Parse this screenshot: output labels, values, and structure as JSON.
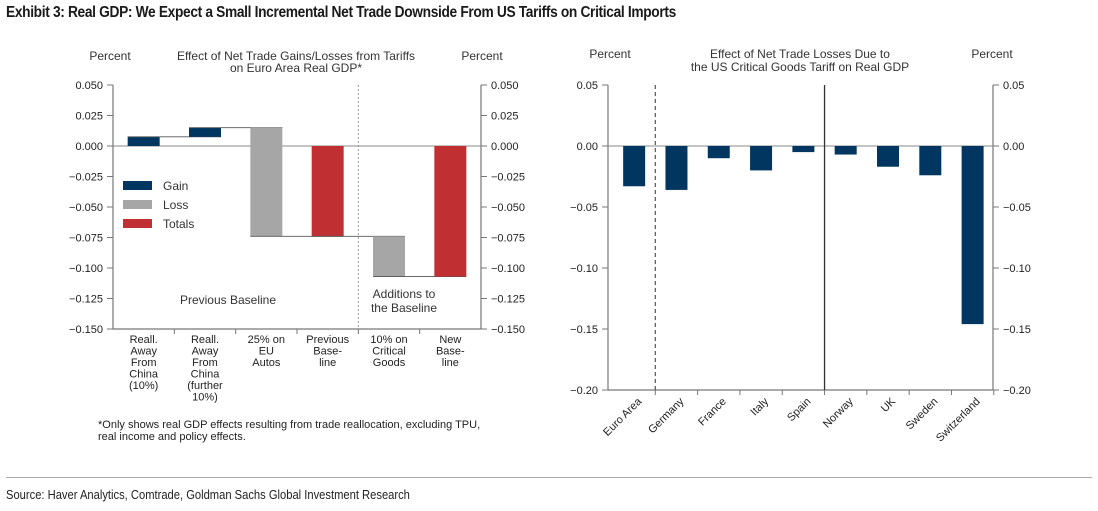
{
  "title": "Exhibit 3: Real GDP: We Expect a Small Incremental Net Trade Downside From US Tariffs on Critical Imports",
  "source": "Source: Haver Analytics, Comtrade, Goldman Sachs Global Investment Research",
  "colors": {
    "gain": "#003660",
    "loss": "#a6a6a6",
    "totals": "#c03033"
  },
  "chart_data": [
    {
      "type": "bar",
      "subtype": "waterfall",
      "title": "Effect of Net Trade Gains/Losses from Tariffs on Euro Area Real GDP*",
      "title_lines": [
        "Effect of Net Trade Gains/Losses from Tariffs",
        "on Euro Area Real GDP*"
      ],
      "ylabel_left": "Percent",
      "ylabel_right": "Percent",
      "ylim": [
        -0.15,
        0.05
      ],
      "yticks": [
        "0.050",
        "0.025",
        "0.000",
        "−0.025",
        "−0.050",
        "−0.075",
        "−0.100",
        "−0.125",
        "−0.150"
      ],
      "ytick_values": [
        0.05,
        0.025,
        0,
        -0.025,
        -0.05,
        -0.075,
        -0.1,
        -0.125,
        -0.15
      ],
      "categories": [
        [
          "Reall.",
          "Away",
          "From",
          "China",
          "(10%)"
        ],
        [
          "Reall.",
          "Away",
          "From",
          "China",
          "(further",
          "10%)"
        ],
        [
          "25% on",
          "EU",
          "Autos"
        ],
        [
          "Previous",
          "Base-",
          "line"
        ],
        [
          "10% on",
          "Critical",
          "Goods"
        ],
        [
          "New",
          "Base-",
          "line"
        ]
      ],
      "bars": [
        {
          "kind": "gain",
          "start": 0.0,
          "end": 0.0075
        },
        {
          "kind": "gain",
          "start": 0.0075,
          "end": 0.015
        },
        {
          "kind": "loss",
          "start": 0.015,
          "end": -0.074
        },
        {
          "kind": "totals",
          "start": 0.0,
          "end": -0.074
        },
        {
          "kind": "loss",
          "start": -0.074,
          "end": -0.107
        },
        {
          "kind": "totals",
          "start": 0.0,
          "end": -0.107
        }
      ],
      "legend": {
        "position": "left-middle",
        "entries": [
          "Gain",
          "Loss",
          "Totals"
        ]
      },
      "annotations": {
        "left_section": "Previous Baseline",
        "right_section": [
          "Additions to",
          "the Baseline"
        ]
      },
      "footnote": [
        "*Only shows real GDP effects resulting from trade reallocation, excluding TPU,",
        "real income and policy effects."
      ]
    },
    {
      "type": "bar",
      "title": "Effect of Net Trade Losses Due to the US Critical Goods Tariff on Real GDP",
      "title_lines": [
        "Effect of Net Trade Losses Due to",
        "the US Critical Goods Tariff on Real GDP"
      ],
      "ylabel_left": "Percent",
      "ylabel_right": "Percent",
      "ylim": [
        -0.2,
        0.05
      ],
      "yticks": [
        "0.05",
        "0.00",
        "−0.05",
        "−0.10",
        "−0.15",
        "−0.20"
      ],
      "ytick_values": [
        0.05,
        0,
        -0.05,
        -0.1,
        -0.15,
        -0.2
      ],
      "categories": [
        "Euro Area",
        "Germany",
        "France",
        "Italy",
        "Spain",
        "Norway",
        "UK",
        "Sweden",
        "Switzerland"
      ],
      "values": [
        -0.033,
        -0.036,
        -0.01,
        -0.02,
        -0.005,
        -0.007,
        -0.017,
        -0.024,
        -0.146
      ],
      "separators": [
        {
          "after_index": 0,
          "style": "dashed"
        },
        {
          "after_index": 4,
          "style": "solid"
        }
      ]
    }
  ]
}
